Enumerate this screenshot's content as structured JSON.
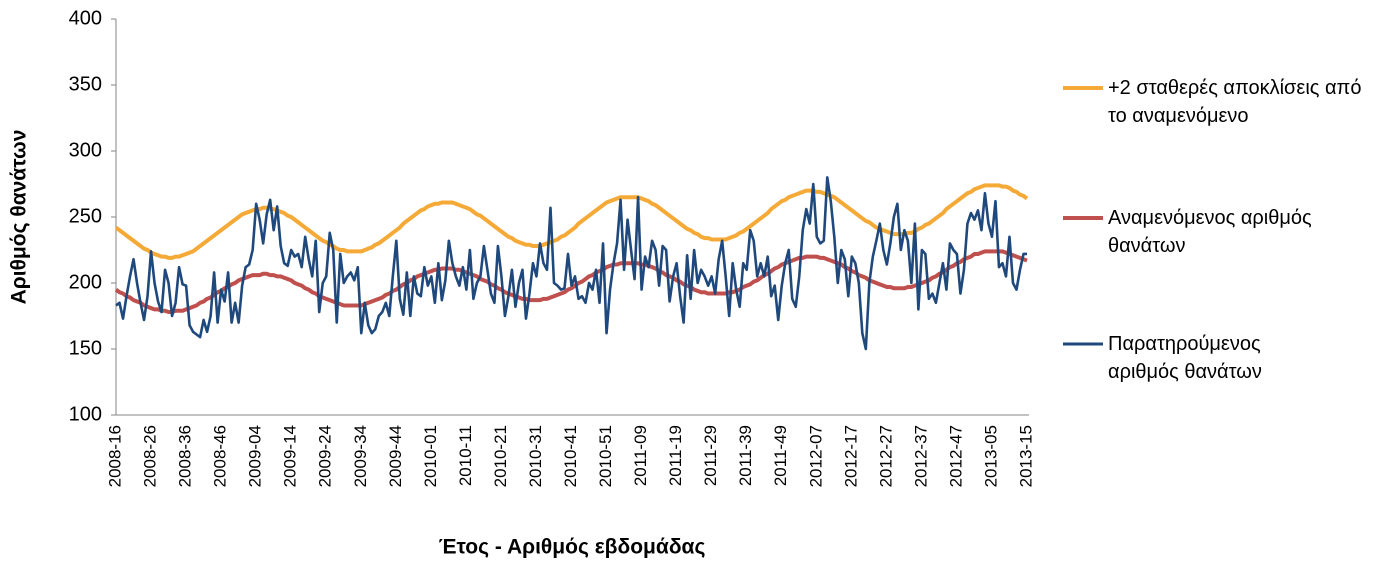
{
  "chart_data": {
    "type": "line",
    "x_label": "Έτος - Αριθμός εβδομάδας",
    "y_label": "Αριθμός θανάτων",
    "categories": [
      "2008-16",
      null,
      null,
      null,
      null,
      null,
      null,
      null,
      null,
      null,
      "2008-26",
      null,
      null,
      null,
      null,
      null,
      null,
      null,
      null,
      null,
      "2008-36",
      null,
      null,
      null,
      null,
      null,
      null,
      null,
      null,
      null,
      "2008-46",
      null,
      null,
      null,
      null,
      null,
      null,
      null,
      null,
      null,
      "2009-04",
      null,
      null,
      null,
      null,
      null,
      null,
      null,
      null,
      null,
      "2009-14",
      null,
      null,
      null,
      null,
      null,
      null,
      null,
      null,
      null,
      "2009-24",
      null,
      null,
      null,
      null,
      null,
      null,
      null,
      null,
      null,
      "2009-34",
      null,
      null,
      null,
      null,
      null,
      null,
      null,
      null,
      null,
      "2009-44",
      null,
      null,
      null,
      null,
      null,
      null,
      null,
      null,
      null,
      "2010-01",
      null,
      null,
      null,
      null,
      null,
      null,
      null,
      null,
      null,
      "2010-11",
      null,
      null,
      null,
      null,
      null,
      null,
      null,
      null,
      null,
      "2010-21",
      null,
      null,
      null,
      null,
      null,
      null,
      null,
      null,
      null,
      "2010-31",
      null,
      null,
      null,
      null,
      null,
      null,
      null,
      null,
      null,
      "2010-41",
      null,
      null,
      null,
      null,
      null,
      null,
      null,
      null,
      null,
      "2010-51",
      null,
      null,
      null,
      null,
      null,
      null,
      null,
      null,
      null,
      "2011-09",
      null,
      null,
      null,
      null,
      null,
      null,
      null,
      null,
      null,
      "2011-19",
      null,
      null,
      null,
      null,
      null,
      null,
      null,
      null,
      null,
      "2011-29",
      null,
      null,
      null,
      null,
      null,
      null,
      null,
      null,
      null,
      "2011-39",
      null,
      null,
      null,
      null,
      null,
      null,
      null,
      null,
      null,
      "2011-49",
      null,
      null,
      null,
      null,
      null,
      null,
      null,
      null,
      null,
      "2012-07",
      null,
      null,
      null,
      null,
      null,
      null,
      null,
      null,
      null,
      "2012-17",
      null,
      null,
      null,
      null,
      null,
      null,
      null,
      null,
      null,
      "2012-27",
      null,
      null,
      null,
      null,
      null,
      null,
      null,
      null,
      null,
      "2012-37",
      null,
      null,
      null,
      null,
      null,
      null,
      null,
      null,
      null,
      "2012-47",
      null,
      null,
      null,
      null,
      null,
      null,
      null,
      null,
      null,
      "2013-05",
      null,
      null,
      null,
      null,
      null,
      null,
      null,
      null,
      null,
      "2013-15"
    ],
    "series": [
      {
        "name": "+2 σταθερές αποκλίσεις από το αναμενόμενο",
        "color": "#f5a937",
        "values": [
          242,
          240,
          238,
          236,
          234,
          232,
          230,
          228,
          226,
          225,
          223,
          222,
          221,
          220,
          220,
          219,
          219,
          220,
          220,
          221,
          222,
          223,
          224,
          226,
          228,
          230,
          232,
          234,
          236,
          238,
          240,
          242,
          244,
          246,
          248,
          250,
          252,
          253,
          254,
          255,
          256,
          256,
          257,
          257,
          256,
          256,
          255,
          254,
          253,
          251,
          250,
          248,
          246,
          244,
          242,
          240,
          238,
          236,
          234,
          232,
          231,
          229,
          228,
          226,
          225,
          225,
          224,
          224,
          224,
          224,
          224,
          225,
          226,
          227,
          229,
          230,
          232,
          234,
          236,
          238,
          240,
          242,
          245,
          247,
          249,
          251,
          253,
          255,
          256,
          258,
          259,
          260,
          260,
          261,
          261,
          261,
          261,
          260,
          259,
          258,
          257,
          256,
          254,
          252,
          251,
          249,
          247,
          245,
          243,
          241,
          239,
          237,
          235,
          234,
          232,
          231,
          230,
          229,
          229,
          228,
          228,
          228,
          229,
          230,
          231,
          232,
          233,
          235,
          236,
          238,
          240,
          242,
          245,
          247,
          249,
          251,
          253,
          255,
          257,
          259,
          261,
          262,
          263,
          264,
          265,
          265,
          265,
          265,
          265,
          265,
          264,
          263,
          262,
          260,
          259,
          257,
          255,
          253,
          251,
          249,
          247,
          245,
          243,
          241,
          240,
          238,
          237,
          235,
          234,
          234,
          233,
          233,
          233,
          233,
          233,
          234,
          235,
          236,
          238,
          239,
          241,
          243,
          245,
          247,
          249,
          251,
          253,
          256,
          258,
          260,
          262,
          263,
          265,
          266,
          267,
          268,
          269,
          270,
          270,
          270,
          269,
          269,
          268,
          267,
          266,
          265,
          263,
          261,
          259,
          257,
          255,
          253,
          251,
          249,
          247,
          246,
          244,
          242,
          241,
          240,
          239,
          238,
          237,
          237,
          237,
          237,
          238,
          238,
          239,
          241,
          242,
          244,
          245,
          247,
          249,
          251,
          253,
          256,
          258,
          260,
          262,
          264,
          266,
          268,
          269,
          271,
          272,
          273,
          274,
          274,
          274,
          274,
          274,
          273,
          273,
          272,
          270,
          269,
          267,
          266,
          264
        ]
      },
      {
        "name": "Αναμενόμενος αριθμός θανάτων",
        "color": "#c0504d",
        "values": [
          195,
          193,
          192,
          190,
          189,
          187,
          186,
          185,
          183,
          182,
          181,
          180,
          180,
          179,
          179,
          178,
          178,
          179,
          179,
          179,
          180,
          181,
          182,
          183,
          185,
          186,
          188,
          189,
          191,
          193,
          194,
          196,
          197,
          199,
          200,
          202,
          203,
          204,
          205,
          206,
          206,
          206,
          207,
          207,
          206,
          206,
          205,
          205,
          204,
          203,
          202,
          200,
          199,
          198,
          196,
          195,
          193,
          192,
          190,
          189,
          188,
          187,
          186,
          185,
          184,
          183,
          183,
          183,
          183,
          183,
          183,
          184,
          185,
          186,
          187,
          188,
          189,
          191,
          192,
          194,
          195,
          197,
          199,
          200,
          202,
          203,
          205,
          206,
          207,
          208,
          209,
          210,
          210,
          211,
          211,
          211,
          211,
          210,
          210,
          209,
          208,
          207,
          206,
          205,
          203,
          202,
          201,
          199,
          198,
          196,
          195,
          193,
          192,
          191,
          190,
          189,
          188,
          188,
          187,
          187,
          187,
          187,
          188,
          188,
          189,
          190,
          191,
          192,
          193,
          195,
          196,
          198,
          200,
          201,
          203,
          205,
          206,
          208,
          209,
          210,
          212,
          213,
          214,
          214,
          215,
          215,
          215,
          215,
          215,
          215,
          214,
          214,
          213,
          212,
          211,
          209,
          208,
          206,
          205,
          204,
          202,
          201,
          199,
          198,
          197,
          195,
          194,
          193,
          193,
          192,
          192,
          192,
          192,
          192,
          192,
          193,
          193,
          194,
          195,
          197,
          198,
          199,
          201,
          202,
          204,
          206,
          207,
          209,
          211,
          212,
          214,
          215,
          216,
          217,
          218,
          219,
          219,
          220,
          220,
          220,
          220,
          219,
          219,
          218,
          217,
          216,
          215,
          214,
          212,
          211,
          209,
          208,
          206,
          205,
          204,
          202,
          201,
          200,
          199,
          198,
          197,
          197,
          196,
          196,
          196,
          196,
          197,
          197,
          198,
          199,
          200,
          201,
          202,
          204,
          205,
          207,
          208,
          210,
          212,
          213,
          215,
          216,
          218,
          219,
          220,
          222,
          222,
          223,
          224,
          224,
          224,
          224,
          224,
          224,
          223,
          222,
          221,
          220,
          219,
          218,
          217
        ]
      },
      {
        "name": "Παρατηρούμενος αριθμός θανάτων",
        "color": "#1f497d",
        "values": [
          183,
          185,
          173,
          190,
          205,
          218,
          200,
          185,
          172,
          190,
          224,
          200,
          186,
          178,
          210,
          200,
          175,
          185,
          212,
          199,
          198,
          168,
          163,
          161,
          159,
          172,
          163,
          175,
          208,
          170,
          195,
          186,
          208,
          170,
          185,
          170,
          198,
          212,
          214,
          225,
          260,
          248,
          230,
          252,
          263,
          240,
          258,
          228,
          215,
          213,
          225,
          220,
          222,
          212,
          235,
          218,
          205,
          232,
          178,
          200,
          205,
          238,
          225,
          170,
          222,
          200,
          205,
          208,
          202,
          212,
          162,
          185,
          168,
          162,
          165,
          175,
          178,
          185,
          175,
          205,
          232,
          188,
          176,
          208,
          175,
          205,
          192,
          190,
          212,
          198,
          205,
          185,
          215,
          187,
          202,
          232,
          215,
          205,
          198,
          212,
          195,
          225,
          188,
          200,
          205,
          228,
          210,
          192,
          185,
          228,
          205,
          175,
          190,
          210,
          182,
          200,
          210,
          173,
          192,
          215,
          205,
          230,
          215,
          210,
          257,
          200,
          198,
          195,
          196,
          222,
          198,
          205,
          188,
          190,
          185,
          200,
          195,
          210,
          185,
          230,
          162,
          195,
          215,
          230,
          263,
          210,
          248,
          225,
          203,
          265,
          195,
          220,
          212,
          232,
          225,
          198,
          228,
          225,
          186,
          205,
          215,
          190,
          170,
          221,
          188,
          225,
          200,
          210,
          205,
          198,
          205,
          192,
          218,
          232,
          205,
          175,
          215,
          195,
          182,
          215,
          210,
          240,
          232,
          205,
          215,
          205,
          220,
          190,
          198,
          172,
          198,
          215,
          225,
          188,
          182,
          205,
          240,
          256,
          245,
          275,
          235,
          230,
          232,
          280,
          262,
          235,
          200,
          225,
          218,
          190,
          220,
          215,
          200,
          162,
          150,
          200,
          220,
          232,
          245,
          225,
          214,
          230,
          250,
          260,
          225,
          240,
          232,
          200,
          245,
          180,
          225,
          222,
          188,
          192,
          185,
          200,
          215,
          195,
          230,
          225,
          222,
          192,
          210,
          245,
          253,
          248,
          255,
          240,
          268,
          245,
          235,
          262,
          212,
          215,
          205,
          235,
          200,
          195,
          210,
          222,
          222
        ]
      }
    ],
    "ylim": [
      100,
      400
    ],
    "yticks": [
      100,
      150,
      200,
      250,
      300,
      350,
      400
    ],
    "grid": false,
    "legend": "right"
  }
}
